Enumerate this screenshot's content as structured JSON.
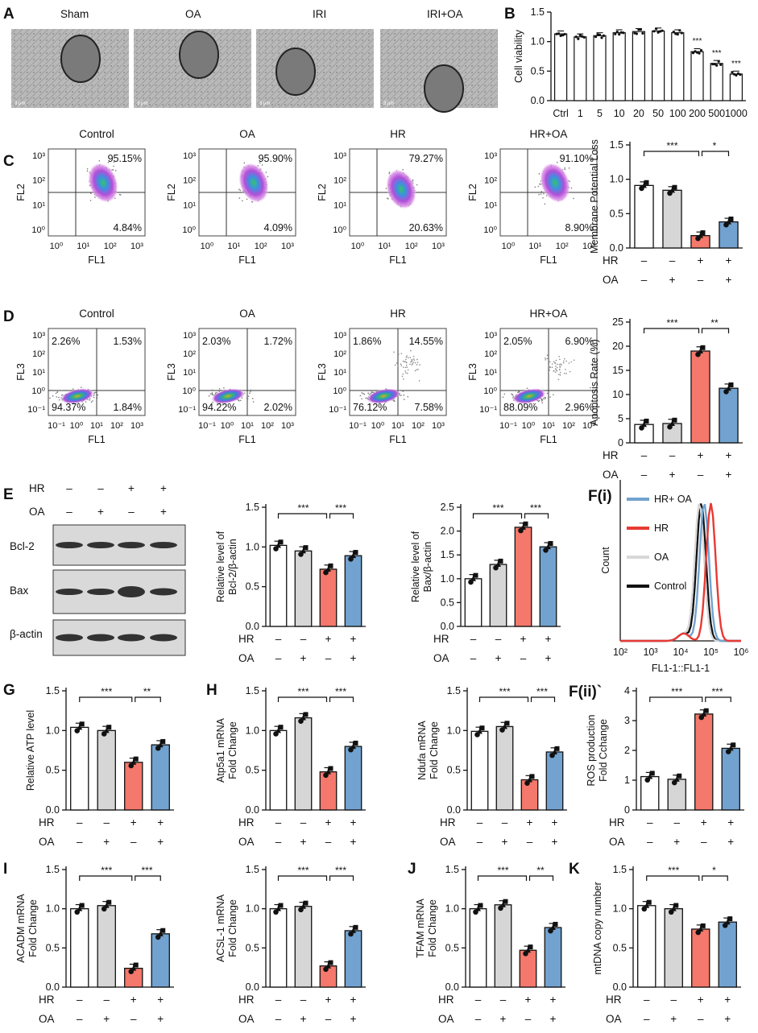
{
  "colors": {
    "ctrl": "#ffffff",
    "oa": "#d6d6d6",
    "hr": "#f4786b",
    "hroa": "#72a2cf",
    "em": "#8a8a8a"
  },
  "treatment": {
    "hr_label": "HR",
    "oa_label": "OA",
    "hr_row": [
      "–",
      "–",
      "+",
      "+"
    ],
    "oa_row": [
      "–",
      "+",
      "–",
      "+"
    ]
  },
  "panel_letters": {
    "A": "A",
    "B": "B",
    "C": "C",
    "D": "D",
    "E": "E",
    "Fi": "F(i)",
    "Fii": "F(ii)`",
    "G": "G",
    "H": "H",
    "I": "I",
    "J": "J",
    "K": "K"
  },
  "panelA": {
    "labels": [
      "Sham",
      "OA",
      "IRI",
      "IRI+OA"
    ],
    "scale": "3 μm"
  },
  "flowC": {
    "titles": [
      "Control",
      "OA",
      "HR",
      "HR+OA"
    ],
    "ylabel": "FL2",
    "xlabel": "FL1",
    "xticks": [
      "10⁰",
      "10¹",
      "10²",
      "10³"
    ],
    "yticks": [
      "10³",
      "10²",
      "10¹",
      "10⁰"
    ],
    "upper": [
      "95.15%",
      "95.90%",
      "79.27%",
      "91.10%"
    ],
    "lower": [
      "4.84%",
      "4.09%",
      "20.63%",
      "8.90%"
    ]
  },
  "flowD": {
    "titles": [
      "Control",
      "OA",
      "HR",
      "HR+OA"
    ],
    "ylabel": "FL3",
    "xlabel": "FL1",
    "xticks": [
      "10⁻¹",
      "10⁰",
      "10¹",
      "10²",
      "10³"
    ],
    "yticks": [
      "10³",
      "10²",
      "10¹",
      "10⁰",
      "10⁻¹"
    ],
    "ul": [
      "2.26%",
      "2.03%",
      "1.86%",
      "2.05%"
    ],
    "ur": [
      "1.53%",
      "1.72%",
      "14.55%",
      "6.90%"
    ],
    "ll": [
      "94.37%",
      "94.22%",
      "76.12%",
      "88.09%"
    ],
    "lr": [
      "1.84%",
      "2.02%",
      "7.58%",
      "2.96%"
    ]
  },
  "westernE": {
    "bands": [
      "Bcl-2",
      "Bax",
      "β-actin"
    ]
  },
  "histF": {
    "legend": [
      "HR+ OA",
      "HR",
      "OA",
      "Control"
    ],
    "ylabel": "Count",
    "xlabel": "FL1-1::FL1-1",
    "xticks": [
      "10²",
      "10³",
      "10⁴",
      "10⁵",
      "10⁶"
    ],
    "peaks_log10": [
      4.78,
      5.0,
      4.62,
      4.68
    ]
  },
  "chart_data": [
    {
      "id": "B",
      "type": "bar",
      "ylabel": "Cell viability",
      "categories": [
        "Ctrl",
        "1",
        "5",
        "10",
        "20",
        "50",
        "100",
        "200",
        "500",
        "1000"
      ],
      "values": [
        1.13,
        1.08,
        1.1,
        1.15,
        1.17,
        1.18,
        1.15,
        0.83,
        0.63,
        0.45
      ],
      "ylim": [
        0,
        1.5
      ],
      "yticks": [
        "0.0",
        "0.5",
        "1.0",
        "1.5"
      ],
      "annotations": [
        "",
        "",
        "",
        "",
        "",
        "",
        "",
        "***",
        "***",
        "***"
      ]
    },
    {
      "id": "C",
      "type": "bar",
      "ylabel": "Membrane Potential Loss",
      "values": [
        0.91,
        0.84,
        0.18,
        0.38
      ],
      "ylim": [
        0,
        1.5
      ],
      "yticks": [
        "0.0",
        "0.5",
        "1.0",
        "1.5"
      ],
      "sig": [
        "***",
        "*"
      ]
    },
    {
      "id": "D",
      "type": "bar",
      "ylabel": "Apoptosis Rate (%)",
      "values": [
        3.8,
        4.0,
        19.0,
        11.3
      ],
      "ylim": [
        0,
        25
      ],
      "yticks": [
        "0",
        "5",
        "10",
        "15",
        "20",
        "25"
      ],
      "sig": [
        "***",
        "**"
      ]
    },
    {
      "id": "E1",
      "type": "bar",
      "ylabel": "Relative level of",
      "ylabel2": "Bcl-2/β-actin",
      "values": [
        1.02,
        0.95,
        0.72,
        0.89
      ],
      "ylim": [
        0,
        1.5
      ],
      "yticks": [
        "0.0",
        "0.5",
        "1.0",
        "1.5"
      ],
      "sig": [
        "***",
        "***"
      ]
    },
    {
      "id": "E2",
      "type": "bar",
      "ylabel": "Relative level of",
      "ylabel2": "Bax/β-actin",
      "values": [
        1.0,
        1.3,
        2.08,
        1.67
      ],
      "ylim": [
        0,
        2.5
      ],
      "yticks": [
        "0.0",
        "0.5",
        "1.0",
        "1.5",
        "2.0",
        "2.5"
      ],
      "sig": [
        "***",
        "***"
      ]
    },
    {
      "id": "G",
      "type": "bar",
      "ylabel": "Relative  ATP level",
      "values": [
        1.04,
        1.0,
        0.6,
        0.82
      ],
      "ylim": [
        0,
        1.5
      ],
      "yticks": [
        "0.0",
        "0.5",
        "1.0",
        "1.5"
      ],
      "sig": [
        "***",
        "**"
      ]
    },
    {
      "id": "H1",
      "type": "bar",
      "ylabel": "Atp5a1 mRNA",
      "ylabel2": "Fold Change",
      "values": [
        1.0,
        1.16,
        0.48,
        0.8
      ],
      "ylim": [
        0,
        1.5
      ],
      "yticks": [
        "0.0",
        "0.5",
        "1.0",
        "1.5"
      ],
      "sig": [
        "***",
        "***"
      ]
    },
    {
      "id": "H2",
      "type": "bar",
      "ylabel": "Ndufa mRNA",
      "ylabel2": "Fold Change",
      "values": [
        0.99,
        1.05,
        0.38,
        0.73
      ],
      "ylim": [
        0,
        1.5
      ],
      "yticks": [
        "0.0",
        "0.5",
        "1.0",
        "1.5"
      ],
      "sig": [
        "***",
        "***"
      ]
    },
    {
      "id": "Fii",
      "type": "bar",
      "ylabel": "ROS production",
      "ylabel2": "Fold Cchange",
      "values": [
        1.12,
        1.03,
        3.22,
        2.07
      ],
      "ylim": [
        0,
        4
      ],
      "yticks": [
        "0",
        "1",
        "2",
        "3",
        "4"
      ],
      "sig": [
        "***",
        "***"
      ]
    },
    {
      "id": "I1",
      "type": "bar",
      "ylabel": "ACADM mRNA",
      "ylabel2": "Fold Change",
      "values": [
        1.0,
        1.04,
        0.24,
        0.68
      ],
      "ylim": [
        0,
        1.5
      ],
      "yticks": [
        "0.0",
        "0.5",
        "1.0",
        "1.5"
      ],
      "sig": [
        "***",
        "***"
      ]
    },
    {
      "id": "I2",
      "type": "bar",
      "ylabel": "ACSL-1 mRNA",
      "ylabel2": "Fold Change",
      "values": [
        1.0,
        1.03,
        0.27,
        0.72
      ],
      "ylim": [
        0,
        1.5
      ],
      "yticks": [
        "0.0",
        "0.5",
        "1.0",
        "1.5"
      ],
      "sig": [
        "***",
        "***"
      ]
    },
    {
      "id": "J",
      "type": "bar",
      "ylabel": "TFAM mRNA",
      "ylabel2": "Fold Change",
      "values": [
        1.0,
        1.05,
        0.47,
        0.76
      ],
      "ylim": [
        0,
        1.5
      ],
      "yticks": [
        "0.0",
        "0.5",
        "1.0",
        "1.5"
      ],
      "sig": [
        "***",
        "**"
      ]
    },
    {
      "id": "K",
      "type": "bar",
      "ylabel": "mtDNA copy number",
      "values": [
        1.04,
        1.0,
        0.74,
        0.83
      ],
      "ylim": [
        0,
        1.5
      ],
      "yticks": [
        "0.0",
        "0.5",
        "1.0",
        "1.5"
      ],
      "sig": [
        "***",
        "*"
      ]
    }
  ]
}
